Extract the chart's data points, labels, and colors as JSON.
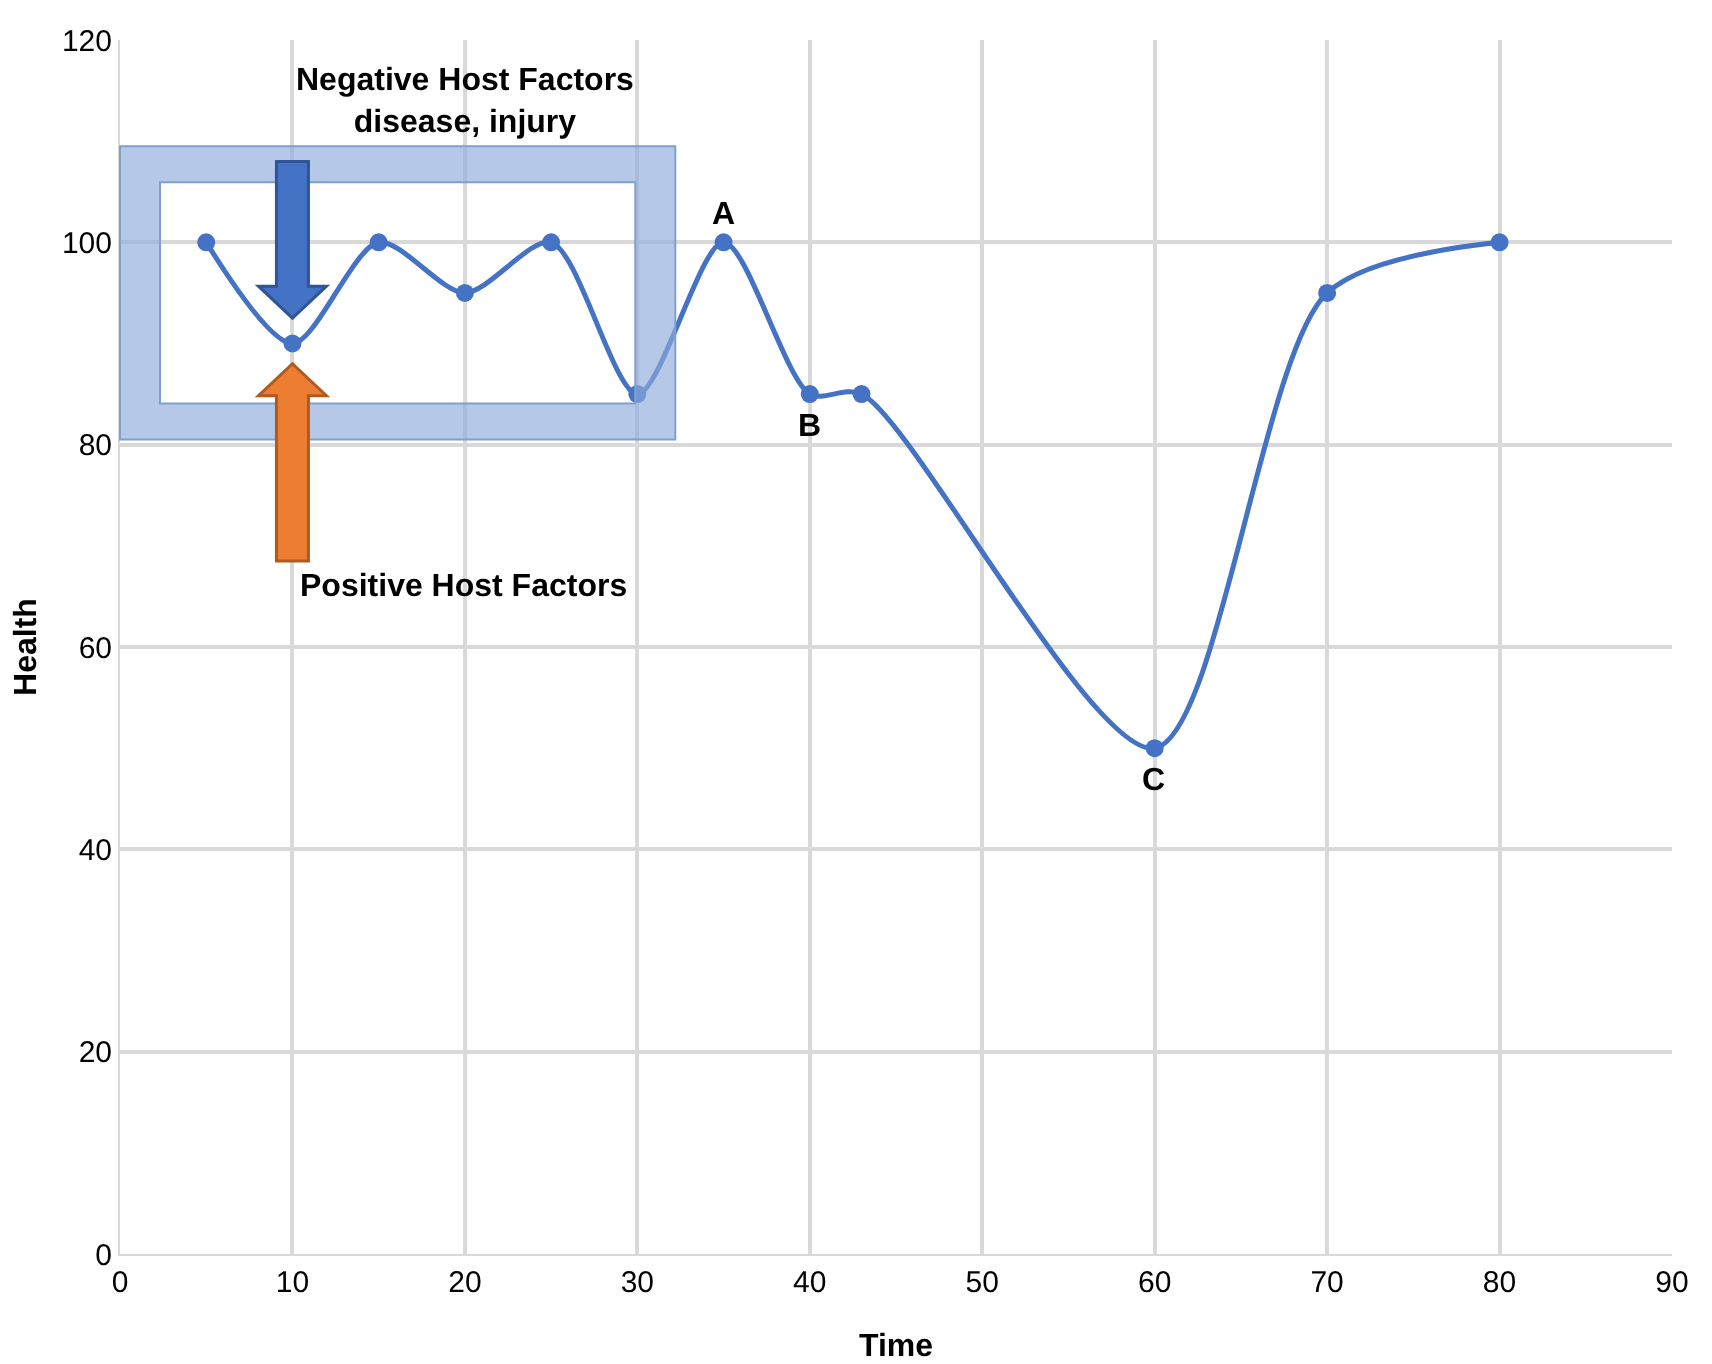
{
  "chart_data": {
    "type": "line",
    "xlabel": "Time",
    "ylabel": "Health",
    "x": [
      5,
      10,
      15,
      20,
      25,
      30,
      35,
      40,
      43,
      60,
      70,
      80
    ],
    "series": [
      {
        "color": "#4472c4",
        "values": [
          100,
          90,
          100,
          95,
          100,
          85,
          100,
          85,
          85,
          50,
          95,
          100
        ]
      }
    ],
    "xlim": [
      0,
      90
    ],
    "xticks": [
      0,
      10,
      20,
      30,
      40,
      50,
      60,
      70,
      80,
      90
    ],
    "ylim": [
      0,
      120
    ],
    "yticks": [
      0,
      20,
      40,
      60,
      80,
      100,
      120
    ],
    "grid": true,
    "marker": "circle",
    "line_style": "solid",
    "annotations": [
      {
        "text": "A",
        "x": 35,
        "y": 100
      },
      {
        "text": "B",
        "x": 40,
        "y": 85
      },
      {
        "text": "C",
        "x": 60,
        "y": 50
      },
      "Negative Host Factors\ndisease, injury",
      "Positive Host Factors"
    ]
  }
}
